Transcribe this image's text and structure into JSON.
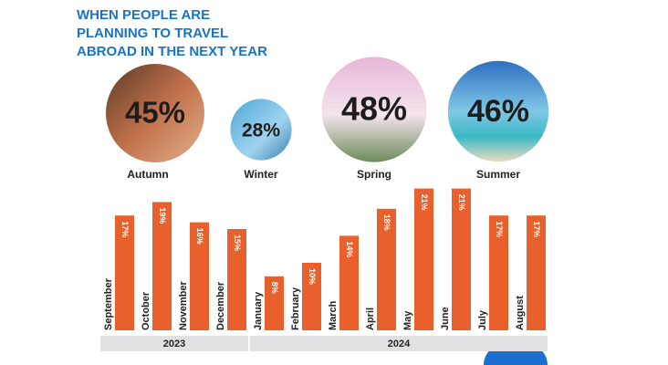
{
  "chart_data": {
    "type": "bar",
    "title": [
      "WHEN PEOPLE ARE",
      "PLANNING TO TRAVEL",
      "ABROAD IN THE NEXT YEAR"
    ],
    "seasons": {
      "categories": [
        "Autumn",
        "Winter",
        "Spring",
        "Summer"
      ],
      "values": [
        45,
        28,
        48,
        46
      ],
      "value_labels": [
        "45%",
        "28%",
        "48%",
        "46%"
      ]
    },
    "categories": [
      "September",
      "October",
      "November",
      "December",
      "January",
      "February",
      "March",
      "April",
      "May",
      "June",
      "July",
      "August"
    ],
    "values": [
      17,
      19,
      16,
      15,
      8,
      10,
      14,
      18,
      21,
      21,
      17,
      17
    ],
    "value_labels": [
      "17%",
      "19%",
      "16%",
      "15%",
      "8%",
      "10%",
      "14%",
      "18%",
      "21%",
      "21%",
      "17%",
      "17%"
    ],
    "color": "#e8612c",
    "groups": [
      {
        "label": "2023",
        "from": "September",
        "to": "December"
      },
      {
        "label": "2024",
        "from": "January",
        "to": "August"
      }
    ]
  }
}
